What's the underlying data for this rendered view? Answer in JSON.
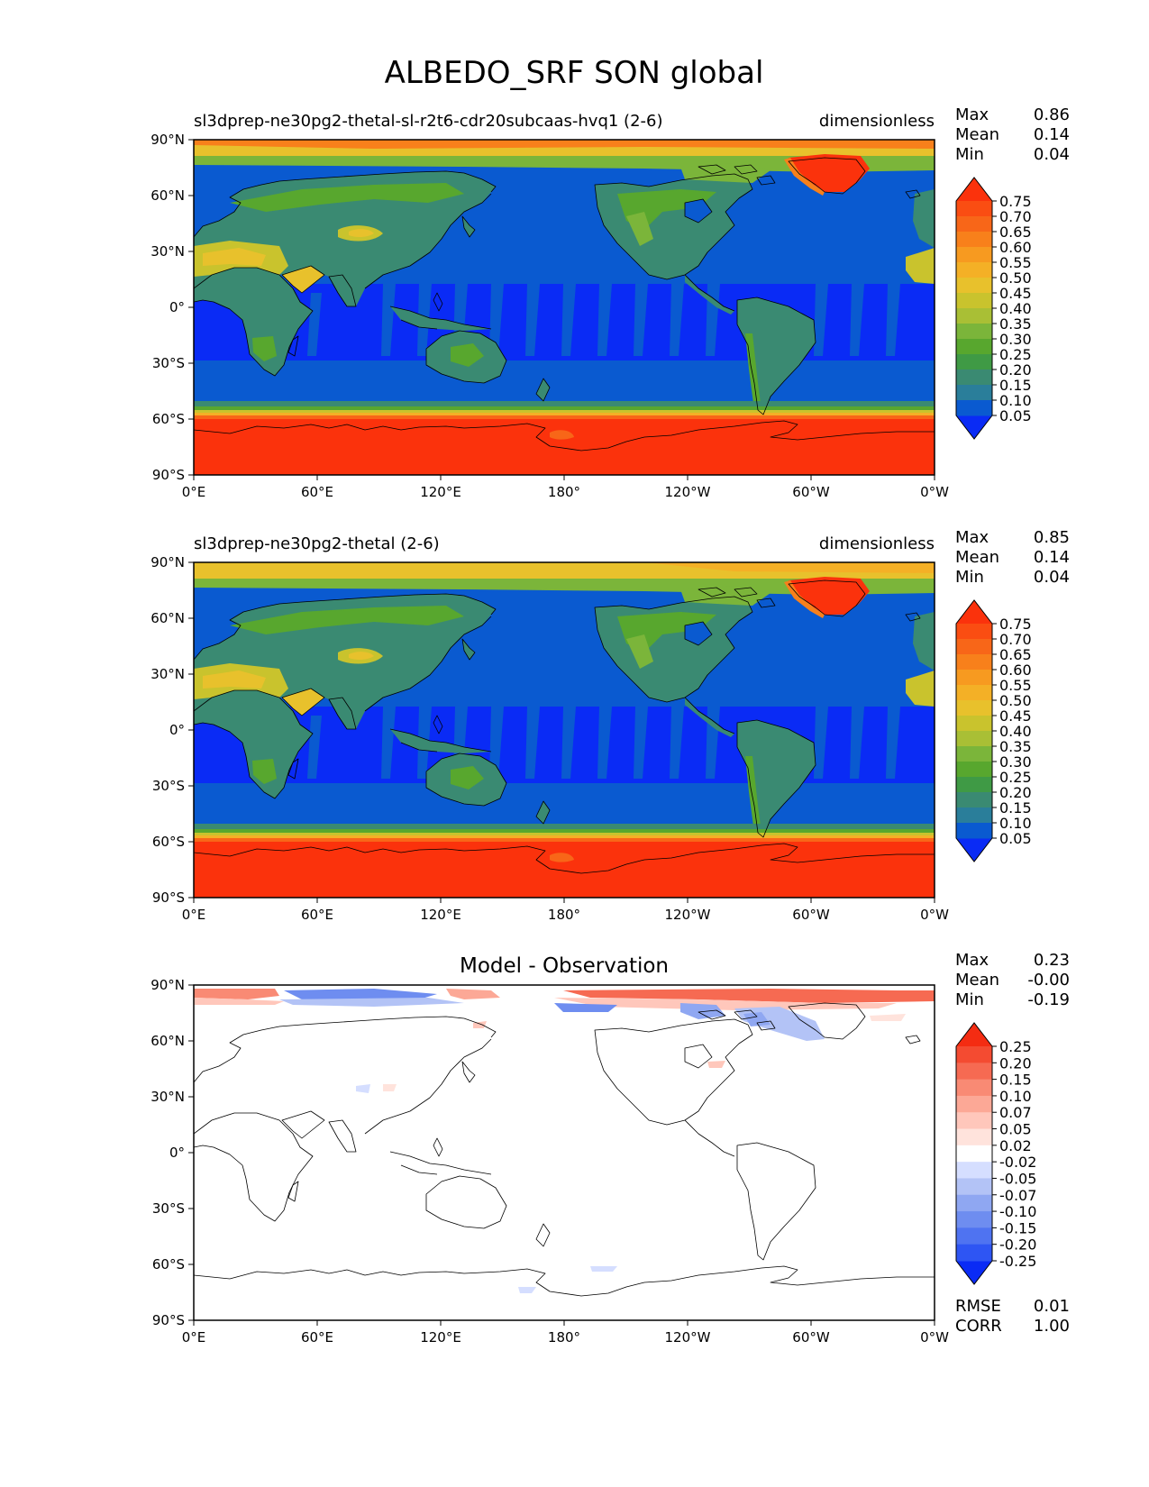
{
  "figure_title": "ALBEDO_SRF SON global",
  "colors": {
    "abs_levels": [
      "#0a2bf5",
      "#0a5ad0",
      "#2a7e9a",
      "#3a8a72",
      "#3f9a45",
      "#58a72e",
      "#7bb53a",
      "#a9bf35",
      "#c9c32d",
      "#e8c12c",
      "#f4b026",
      "#f79a20",
      "#f8801b",
      "#f86618",
      "#fa4d12",
      "#fb320c"
    ],
    "ocean": "#0a5ad0",
    "ocean_streak": "#0a2bf5",
    "land": "#3a8a72",
    "land_green": "#58a72e",
    "desert": "#c9c32d",
    "desert_hot": "#e8c12c",
    "polar_yellow": "#e8c12c",
    "polar_orange": "#f8801b",
    "ice": "#fb320c",
    "diff_levels": [
      "#0a2bf5",
      "#2e55f3",
      "#4f73f1",
      "#6e8df0",
      "#8fa7f2",
      "#b3c3f6",
      "#d5deff",
      "#ffffff",
      "#ffe3dc",
      "#ffc7bb",
      "#fca896",
      "#f98a74",
      "#f66a52",
      "#f44b31",
      "#f42c12"
    ],
    "coast": "#000000"
  },
  "panels": [
    {
      "title": "sl3dprep-ne30pg2-thetal-sl-r2t6-cdr20subcaas-hvq1 (2-6)",
      "units": "dimensionless",
      "stats": [
        {
          "label": "Max",
          "value": "0.86"
        },
        {
          "label": "Mean",
          "value": "0.14"
        },
        {
          "label": "Min",
          "value": "0.04"
        }
      ],
      "colorbar_ticks": [
        "0.75",
        "0.70",
        "0.65",
        "0.60",
        "0.55",
        "0.50",
        "0.45",
        "0.40",
        "0.35",
        "0.30",
        "0.25",
        "0.20",
        "0.15",
        "0.10",
        "0.05"
      ]
    },
    {
      "title": "sl3dprep-ne30pg2-thetal (2-6)",
      "units": "dimensionless",
      "stats": [
        {
          "label": "Max",
          "value": "0.85"
        },
        {
          "label": "Mean",
          "value": "0.14"
        },
        {
          "label": "Min",
          "value": "0.04"
        }
      ],
      "colorbar_ticks": [
        "0.75",
        "0.70",
        "0.65",
        "0.60",
        "0.55",
        "0.50",
        "0.45",
        "0.40",
        "0.35",
        "0.30",
        "0.25",
        "0.20",
        "0.15",
        "0.10",
        "0.05"
      ]
    },
    {
      "title": "Model - Observation",
      "stats": [
        {
          "label": "Max",
          "value": "0.23"
        },
        {
          "label": "Mean",
          "value": "-0.00"
        },
        {
          "label": "Min",
          "value": "-0.19"
        }
      ],
      "colorbar_ticks": [
        "0.25",
        "0.20",
        "0.15",
        "0.10",
        "0.07",
        "0.05",
        "0.02",
        "-0.02",
        "-0.05",
        "-0.07",
        "-0.10",
        "-0.15",
        "-0.20",
        "-0.25"
      ],
      "metrics": [
        {
          "label": "RMSE",
          "value": "0.01"
        },
        {
          "label": "CORR",
          "value": "1.00"
        }
      ]
    }
  ],
  "chart_data": {
    "type": "heatmap",
    "title": "ALBEDO_SRF SON global",
    "variable": "ALBEDO_SRF",
    "units": "dimensionless",
    "x_ticks": [
      "0°E",
      "60°E",
      "120°E",
      "180°",
      "120°W",
      "60°W",
      "0°W"
    ],
    "x_tick_lons": [
      0,
      60,
      120,
      180,
      240,
      300,
      360
    ],
    "y_ticks": [
      "90°N",
      "60°N",
      "30°N",
      "0°",
      "30°S",
      "60°S",
      "90°S"
    ],
    "y_tick_lats": [
      90,
      60,
      30,
      0,
      -30,
      -60,
      -90
    ],
    "xlim": [
      0,
      360
    ],
    "ylim": [
      -90,
      90
    ],
    "abs_levels": [
      0.05,
      0.1,
      0.15,
      0.2,
      0.25,
      0.3,
      0.35,
      0.4,
      0.45,
      0.5,
      0.55,
      0.6,
      0.65,
      0.7,
      0.75
    ],
    "diff_levels": [
      -0.25,
      -0.2,
      -0.15,
      -0.1,
      -0.07,
      -0.05,
      -0.02,
      0.02,
      0.05,
      0.07,
      0.1,
      0.15,
      0.2,
      0.25
    ]
  }
}
